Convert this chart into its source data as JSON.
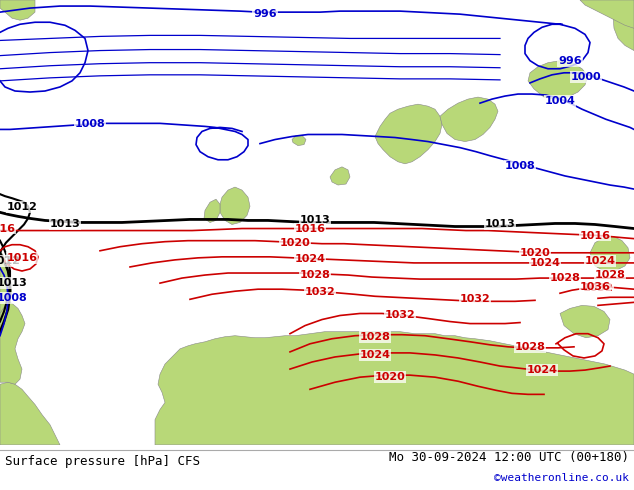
{
  "title_left": "Surface pressure [hPa] CFS",
  "title_right": "Mo 30-09-2024 12:00 UTC (00+180)",
  "title_right2": "©weatheronline.co.uk",
  "ocean_color": "#d4d4dc",
  "land_color": "#b8d878",
  "land_edge": "#888888",
  "blue": "#0000cc",
  "red": "#cc0000",
  "black": "#000000",
  "white": "#ffffff",
  "footer_text": "#000000",
  "footer_link": "#0000cc",
  "footer_sep": "#aaaaaa"
}
